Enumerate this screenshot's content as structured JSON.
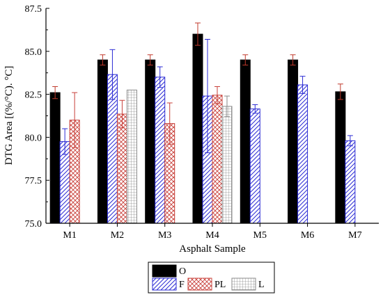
{
  "chart_data": {
    "type": "bar",
    "xlabel": "Asphalt Sample",
    "ylabel": "DTG Area [(%/°C). °C]",
    "ylim": [
      75.0,
      87.5
    ],
    "yticks": [
      "75.0",
      "77.5",
      "80.0",
      "82.5",
      "85.0",
      "87.5"
    ],
    "categories": [
      "M1",
      "M2",
      "M3",
      "M4",
      "M5",
      "M6",
      "M7"
    ],
    "legend_position": "bottom-center",
    "grid": false,
    "series": [
      {
        "name": "O",
        "color": "#000000",
        "pattern": "solid",
        "values": [
          82.6,
          84.5,
          84.5,
          86.0,
          84.5,
          84.5,
          82.65
        ],
        "errors": [
          0.35,
          0.3,
          0.3,
          0.65,
          0.3,
          0.3,
          0.45
        ]
      },
      {
        "name": "F",
        "color": "#2b2bd4",
        "pattern": "diagonal-hatch",
        "values": [
          79.75,
          83.65,
          83.5,
          82.4,
          81.65,
          83.05,
          79.8
        ],
        "errors": [
          0.75,
          1.45,
          0.6,
          3.3,
          0.25,
          0.5,
          0.3
        ]
      },
      {
        "name": "PL",
        "color": "#c8403a",
        "pattern": "crosshatch",
        "values": [
          81.0,
          81.35,
          80.8,
          82.45,
          null,
          null,
          null
        ],
        "errors": [
          1.6,
          0.8,
          1.2,
          0.5,
          null,
          null,
          null
        ]
      },
      {
        "name": "L",
        "color": "#8a8a8a",
        "pattern": "grid",
        "values": [
          null,
          82.75,
          null,
          81.8,
          null,
          null,
          null
        ],
        "errors": [
          null,
          0.0,
          null,
          0.6,
          null,
          null,
          null
        ]
      }
    ]
  }
}
